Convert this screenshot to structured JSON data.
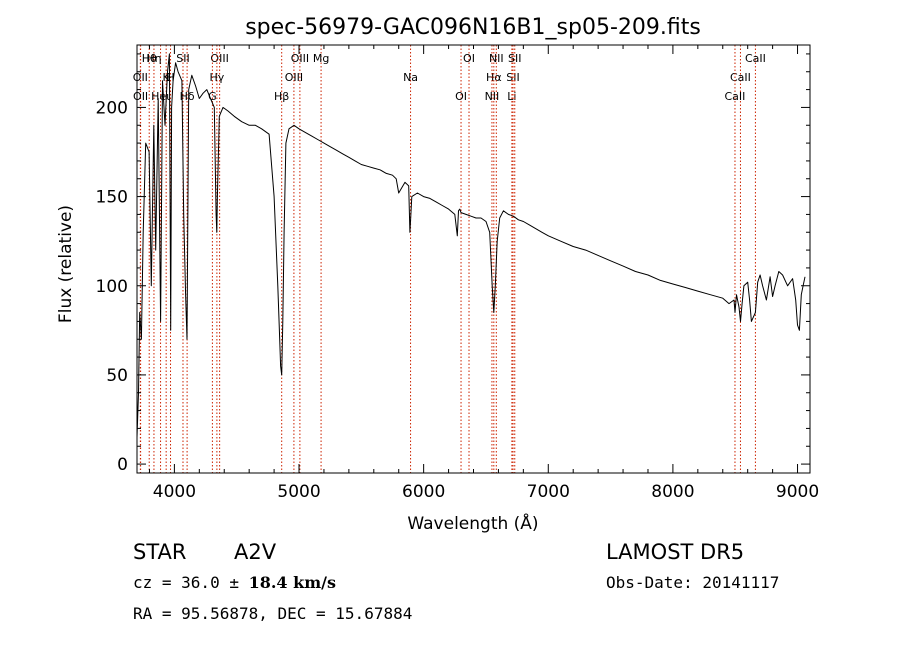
{
  "chart_data": {
    "type": "line",
    "title": "spec-56979-GAC096N16B1_sp05-209.fits",
    "xlabel": "Wavelength (Å)",
    "ylabel": "Flux (relative)",
    "xlim": [
      3700,
      9100
    ],
    "ylim": [
      -5,
      235
    ],
    "xticks": [
      4000,
      5000,
      6000,
      7000,
      8000,
      9000
    ],
    "yticks": [
      0,
      50,
      100,
      150,
      200
    ],
    "line_color": "#000000",
    "marker_color": "#cc2200",
    "series": [
      {
        "x": [
          3700,
          3712,
          3722,
          3735,
          3750,
          3770,
          3797,
          3815,
          3835,
          3850,
          3870,
          3889,
          3905,
          3925,
          3945,
          3960,
          3970,
          3978,
          3990,
          4010,
          4030,
          4060,
          4075,
          4090,
          4101,
          4115,
          4140,
          4170,
          4200,
          4230,
          4260,
          4290,
          4320,
          4335,
          4340,
          4345,
          4360,
          4390,
          4430,
          4480,
          4540,
          4600,
          4650,
          4700,
          4760,
          4800,
          4830,
          4845,
          4852,
          4861,
          4870,
          4880,
          4895,
          4920,
          4960,
          5000,
          5050,
          5100,
          5150,
          5200,
          5250,
          5300,
          5350,
          5400,
          5450,
          5500,
          5550,
          5600,
          5650,
          5700,
          5750,
          5780,
          5800,
          5850,
          5880,
          5890,
          5896,
          5905,
          5950,
          6000,
          6050,
          6100,
          6150,
          6200,
          6250,
          6270,
          6280,
          6290,
          6300,
          6340,
          6380,
          6420,
          6460,
          6500,
          6530,
          6550,
          6563,
          6575,
          6590,
          6610,
          6640,
          6680,
          6720,
          6760,
          6800,
          6850,
          6900,
          6950,
          7000,
          7100,
          7200,
          7300,
          7400,
          7500,
          7600,
          7700,
          7800,
          7900,
          8000,
          8100,
          8200,
          8300,
          8400,
          8450,
          8490,
          8498,
          8510,
          8530,
          8542,
          8555,
          8570,
          8600,
          8615,
          8630,
          8662,
          8680,
          8700,
          8720,
          8750,
          8780,
          8800,
          8820,
          8850,
          8880,
          8920,
          8960,
          8985,
          9000,
          9015,
          9030,
          9045,
          9060
        ],
        "y": [
          15,
          40,
          85,
          70,
          130,
          180,
          175,
          100,
          190,
          120,
          205,
          80,
          215,
          190,
          220,
          230,
          75,
          200,
          215,
          225,
          220,
          215,
          140,
          95,
          70,
          210,
          218,
          212,
          205,
          208,
          210,
          205,
          200,
          140,
          130,
          150,
          195,
          200,
          198,
          195,
          192,
          190,
          190,
          188,
          185,
          150,
          100,
          70,
          55,
          50,
          80,
          130,
          180,
          188,
          190,
          188,
          186,
          184,
          182,
          180,
          178,
          176,
          174,
          172,
          170,
          168,
          167,
          166,
          165,
          163,
          162,
          160,
          152,
          158,
          156,
          130,
          138,
          150,
          152,
          150,
          149,
          147,
          145,
          143,
          140,
          128,
          142,
          143,
          141,
          140,
          139,
          138,
          138,
          136,
          130,
          100,
          85,
          100,
          125,
          138,
          142,
          140,
          139,
          137,
          136,
          134,
          132,
          130,
          128,
          125,
          122,
          120,
          117,
          114,
          111,
          108,
          106,
          103,
          101,
          99,
          97,
          95,
          93,
          90,
          92,
          85,
          95,
          88,
          80,
          90,
          100,
          102,
          92,
          80,
          85,
          102,
          106,
          100,
          92,
          105,
          94,
          100,
          108,
          106,
          100,
          104,
          92,
          78,
          75,
          95,
          100,
          105
        ]
      }
    ],
    "lines": [
      {
        "label": "Hθ",
        "x": 3798
      },
      {
        "label": "K",
        "x": 3934
      },
      {
        "label": "Hδ",
        "x": 4102
      },
      {
        "label": "OIII",
        "x": 4363
      },
      {
        "label": "OII",
        "x": 3727
      },
      {
        "label": "Heι",
        "x": 3889
      },
      {
        "label": "SII",
        "x": 4069
      },
      {
        "label": "Hγ",
        "x": 4341
      },
      {
        "label": "OII",
        "x": 3729
      },
      {
        "label": "Hη",
        "x": 3836
      },
      {
        "label": "H",
        "x": 3969
      },
      {
        "label": "G",
        "x": 4305
      },
      {
        "label": "OIII",
        "x": 5007
      },
      {
        "label": "OIII",
        "x": 4959
      },
      {
        "label": "Hβ",
        "x": 4861
      },
      {
        "label": "Mg",
        "x": 5177
      },
      {
        "label": "Na",
        "x": 5895
      },
      {
        "label": "OI",
        "x": 6300
      },
      {
        "label": "OI",
        "x": 6364
      },
      {
        "label": "Hα",
        "x": 6563
      },
      {
        "label": "NII",
        "x": 6548
      },
      {
        "label": "NII",
        "x": 6583
      },
      {
        "label": "SII",
        "x": 6717
      },
      {
        "label": "Li",
        "x": 6708
      },
      {
        "label": "SII",
        "x": 6731
      },
      {
        "label": "CaII",
        "x": 8542
      },
      {
        "label": "CaII",
        "x": 8498
      },
      {
        "label": "CaII",
        "x": 8662
      }
    ]
  },
  "info": {
    "object_type": "STAR",
    "subclass": "A2V",
    "survey": "LAMOST  DR5",
    "cz_prefix": "cz = 36.0 ± ",
    "cz_value": "18.4 km/s",
    "obs_date": "Obs-Date: 20141117",
    "coords": "RA =  95.56878, DEC =  15.67884"
  }
}
